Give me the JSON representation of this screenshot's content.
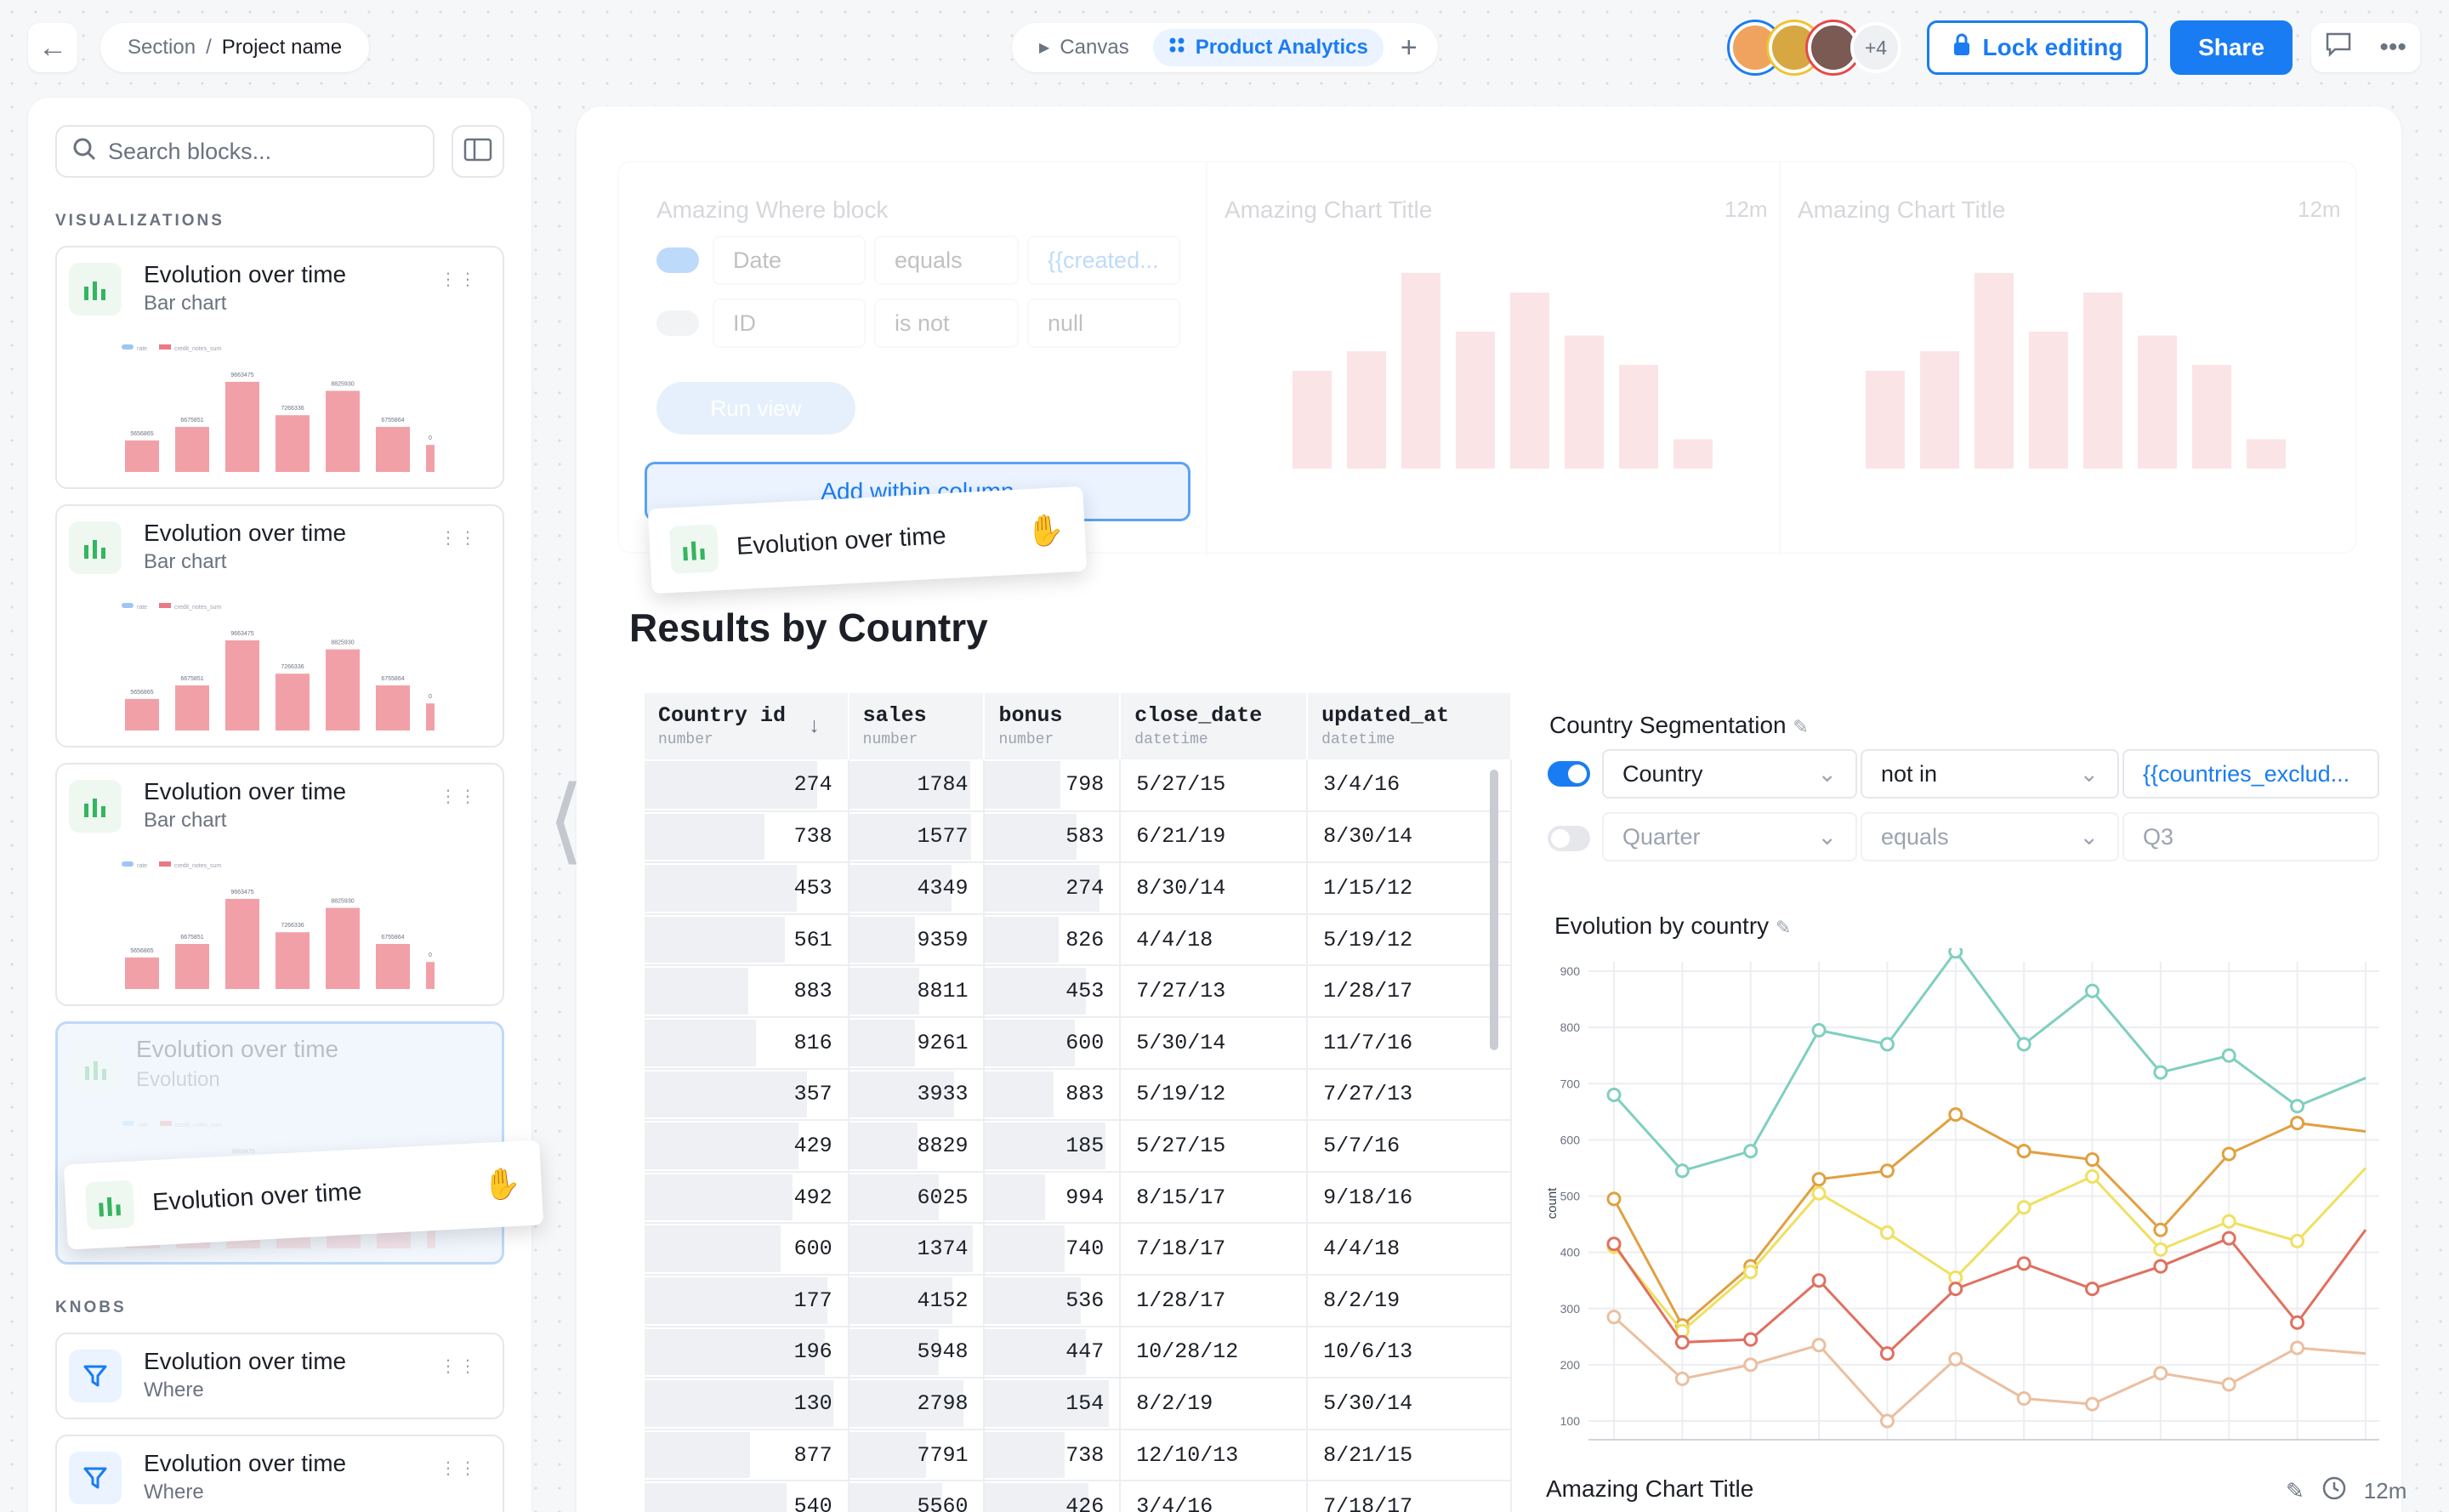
{
  "topbar": {
    "breadcrumb": {
      "section": "Section",
      "separator": "/",
      "project": "Project name"
    },
    "tabs": [
      {
        "label": "Canvas",
        "icon": "play-icon",
        "active": false
      },
      {
        "label": "Product Analytics",
        "icon": "grid-icon",
        "active": true
      }
    ],
    "avatars": [
      {
        "color": "#f0a35e",
        "ring": "#1a7cf2"
      },
      {
        "color": "#d7a742",
        "ring": "#f2c230"
      },
      {
        "color": "#7a5a52",
        "ring": "#e5484d"
      }
    ],
    "more_avatars": "+4",
    "lock_label": "Lock editing",
    "share_label": "Share"
  },
  "sidebar": {
    "search_placeholder": "Search blocks...",
    "sections": {
      "visualizations": "VISUALIZATIONS",
      "knobs": "KNOBS"
    },
    "viz_cards": [
      {
        "title": "Evolution over time",
        "subtitle": "Bar chart"
      },
      {
        "title": "Evolution over time",
        "subtitle": "Bar chart"
      },
      {
        "title": "Evolution over time",
        "subtitle": "Bar chart"
      },
      {
        "title": "Evolution over time",
        "subtitle": "Evolution"
      }
    ],
    "knob_cards": [
      {
        "title": "Evolution over time",
        "subtitle": "Where"
      },
      {
        "title": "Evolution over time",
        "subtitle": "Where"
      }
    ],
    "mini_chart": {
      "values": [
        35,
        50,
        100,
        63,
        90,
        50,
        30
      ],
      "labels": [
        "5656865",
        "6675851",
        "9663475",
        "7266336",
        "8825930",
        "6755864",
        "0"
      ],
      "legend": [
        "rate",
        "credit_notes_sum"
      ]
    }
  },
  "canvas": {
    "ghost": {
      "where_title": "Amazing Where block",
      "row1": {
        "field": "Date",
        "op": "equals",
        "value": "{{created..."
      },
      "row2": {
        "field": "ID",
        "op": "is not",
        "value": "null"
      },
      "run_label": "Run view",
      "chart1_title": "Amazing Chart Title",
      "chart2_title": "Amazing Chart Title",
      "time": "12m",
      "bars": [
        50,
        60,
        100,
        70,
        90,
        68,
        53,
        15
      ]
    },
    "add_within_label": "Add within column",
    "drag_label": "Evolution over time",
    "results_title": "Results by Country",
    "table": {
      "columns": [
        {
          "name": "Country id",
          "type": "number"
        },
        {
          "name": "sales",
          "type": "number"
        },
        {
          "name": "bonus",
          "type": "number"
        },
        {
          "name": "close_date",
          "type": "datetime"
        },
        {
          "name": "updated_at",
          "type": "datetime"
        }
      ],
      "rows": [
        [
          274,
          1784,
          798,
          "5/27/15",
          "3/4/16"
        ],
        [
          738,
          1577,
          583,
          "6/21/19",
          "8/30/14"
        ],
        [
          453,
          4349,
          274,
          "8/30/14",
          "1/15/12"
        ],
        [
          561,
          9359,
          826,
          "4/4/18",
          "5/19/12"
        ],
        [
          883,
          8811,
          453,
          "7/27/13",
          "1/28/17"
        ],
        [
          816,
          9261,
          600,
          "5/30/14",
          "11/7/16"
        ],
        [
          357,
          3933,
          883,
          "5/19/12",
          "7/27/13"
        ],
        [
          429,
          8829,
          185,
          "5/27/15",
          "5/7/16"
        ],
        [
          492,
          6025,
          994,
          "8/15/17",
          "9/18/16"
        ],
        [
          600,
          1374,
          740,
          "7/18/17",
          "4/4/18"
        ],
        [
          177,
          4152,
          536,
          "1/28/17",
          "8/2/19"
        ],
        [
          196,
          5948,
          447,
          "10/28/12",
          "10/6/13"
        ],
        [
          130,
          2798,
          154,
          "8/2/19",
          "5/30/14"
        ],
        [
          877,
          7791,
          738,
          "12/10/13",
          "8/21/15"
        ],
        [
          540,
          5560,
          426,
          "3/4/16",
          "7/18/17"
        ]
      ]
    },
    "segmentation": {
      "title": "Country Segmentation",
      "row1": {
        "enabled": true,
        "field": "Country",
        "op": "not in",
        "value": "{{countries_exclud..."
      },
      "row2": {
        "enabled": false,
        "field": "Quarter",
        "op": "equals",
        "value": "Q3"
      }
    },
    "line_chart_title": "Evolution by country",
    "amazing_title": "Amazing Chart Title",
    "amazing_time": "12m"
  },
  "chart_data": {
    "type": "line",
    "title": "Evolution by country",
    "ylabel": "count",
    "yticks": [
      100,
      200,
      300,
      400,
      500,
      600,
      700,
      800,
      900
    ],
    "ylim": [
      100,
      950
    ],
    "x": [
      0,
      1,
      2,
      3,
      4,
      5,
      6,
      7,
      8,
      9,
      10,
      11
    ],
    "series": [
      {
        "color": "#7fcfbf",
        "values": [
          680,
          545,
          580,
          795,
          770,
          935,
          770,
          865,
          720,
          750,
          660,
          710
        ]
      },
      {
        "color": "#e0a040",
        "values": [
          495,
          270,
          375,
          530,
          545,
          645,
          580,
          565,
          440,
          575,
          630,
          615
        ]
      },
      {
        "color": "#f0e060",
        "values": [
          410,
          260,
          365,
          505,
          435,
          355,
          480,
          535,
          405,
          455,
          420,
          550
        ]
      },
      {
        "color": "#e07060",
        "values": [
          415,
          240,
          245,
          350,
          220,
          335,
          380,
          335,
          375,
          425,
          275,
          440
        ]
      },
      {
        "color": "#ebbfa0",
        "values": [
          285,
          175,
          200,
          235,
          100,
          210,
          140,
          130,
          185,
          165,
          230,
          220
        ]
      }
    ]
  }
}
